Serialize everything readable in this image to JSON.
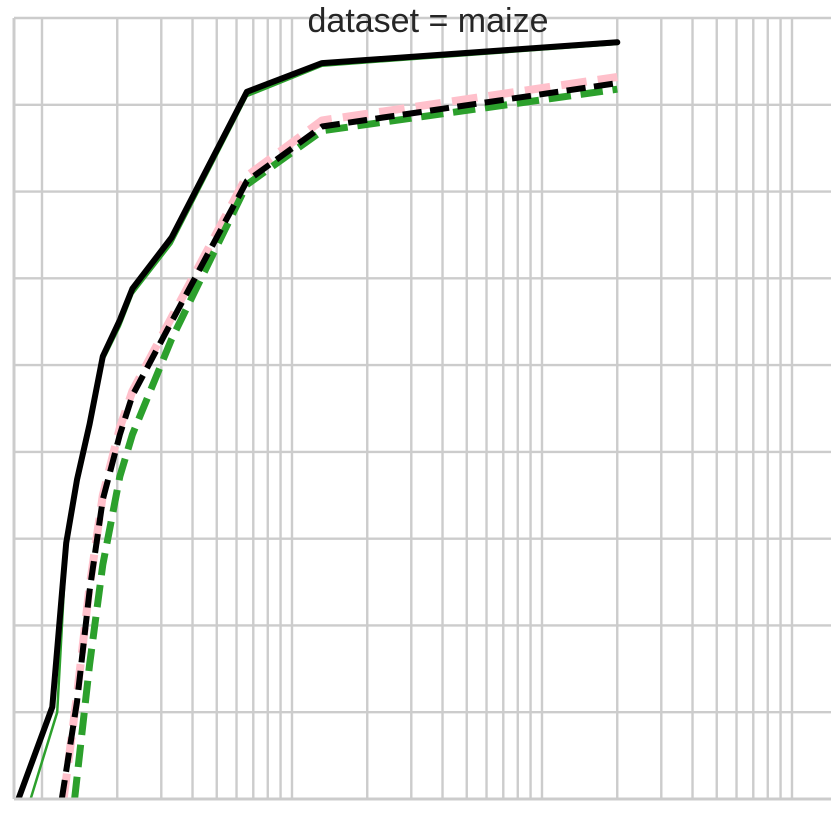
{
  "chart_data": {
    "type": "line",
    "title": "dataset = maize",
    "xlabel": "",
    "ylabel": "",
    "x_scale": "log",
    "grid": true,
    "legend": "none",
    "series": [
      {
        "color": "#c8a98a",
        "style": "solid",
        "width": 1.5,
        "x": [
          0.9,
          1.15,
          1.25,
          1.38,
          1.55,
          1.75,
          2.05,
          2.3,
          3.3,
          6.6,
          13.2,
          200
        ],
        "y": [
          0.0,
          1.0,
          2.9,
          3.62,
          4.3,
          5.08,
          5.48,
          5.84,
          6.44,
          8.14,
          8.48,
          8.72
        ]
      },
      {
        "color": "#2ca02c",
        "style": "solid",
        "width": 2.5,
        "x": [
          0.9,
          1.15,
          1.25,
          1.38,
          1.55,
          1.75,
          2.05,
          2.3,
          3.3,
          6.6,
          13.2,
          200
        ],
        "y": [
          0.0,
          1.0,
          2.9,
          3.6,
          4.25,
          5.05,
          5.45,
          5.82,
          6.4,
          8.1,
          8.45,
          8.7
        ]
      },
      {
        "color": "#000000",
        "style": "solid",
        "width": 6,
        "x": [
          0.8,
          1.1,
          1.25,
          1.38,
          1.55,
          1.75,
          2.05,
          2.3,
          3.3,
          6.6,
          13.2,
          200
        ],
        "y": [
          -0.02,
          1.06,
          2.95,
          3.68,
          4.32,
          5.1,
          5.52,
          5.88,
          6.47,
          8.15,
          8.48,
          8.72
        ]
      },
      {
        "color": "#ffc0cb",
        "style": "dashed",
        "width": 8,
        "x": [
          1.22,
          1.38,
          1.55,
          1.75,
          2.05,
          2.3,
          3.3,
          6.6,
          13.2,
          200
        ],
        "y": [
          0.0,
          1.2,
          2.45,
          3.5,
          4.28,
          4.7,
          5.55,
          7.18,
          7.82,
          8.32
        ]
      },
      {
        "color": "#2ca02c",
        "style": "dashed",
        "width": 7,
        "x": [
          1.35,
          1.55,
          1.75,
          2.05,
          2.3,
          3.3,
          6.6,
          13.2,
          200
        ],
        "y": [
          0.0,
          1.55,
          2.7,
          3.72,
          4.2,
          5.3,
          7.08,
          7.7,
          8.18
        ]
      },
      {
        "color": "#000000",
        "style": "dashed",
        "width": 6,
        "x": [
          1.2,
          1.38,
          1.55,
          1.75,
          2.05,
          2.3,
          3.3,
          6.6,
          13.2,
          200
        ],
        "y": [
          0.0,
          1.12,
          2.4,
          3.45,
          4.2,
          4.65,
          5.5,
          7.12,
          7.75,
          8.25
        ]
      }
    ]
  }
}
